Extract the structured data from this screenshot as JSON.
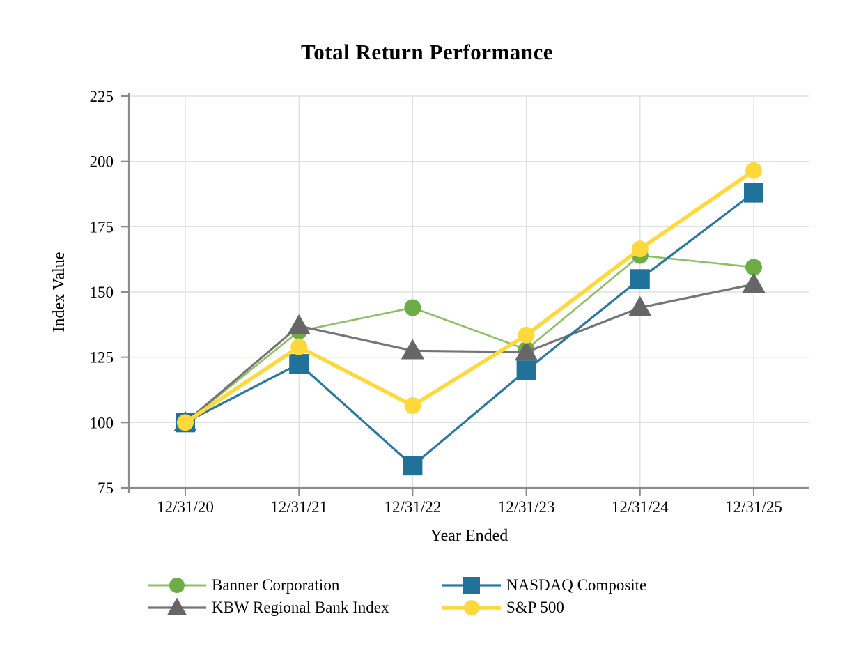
{
  "page": {
    "background": "#FFFFFF"
  },
  "chart_data": {
    "type": "line",
    "title": "Total Return Performance",
    "xlabel": "Year Ended",
    "ylabel": "Index Value",
    "categories": [
      "12/31/20",
      "12/31/21",
      "12/31/22",
      "12/31/23",
      "12/31/24",
      "12/31/25"
    ],
    "ylim": [
      75,
      225
    ],
    "yticks": [
      75,
      100,
      125,
      150,
      175,
      200,
      225
    ],
    "grid": true,
    "legend_position": "bottom",
    "series": [
      {
        "name": "Banner Corporation",
        "marker": "circle",
        "color": "#6CAD46",
        "line_color": "#8CC063",
        "line_width": 2.6,
        "values": [
          100,
          135,
          144,
          128,
          164,
          159.5
        ]
      },
      {
        "name": "NASDAQ Composite",
        "marker": "square",
        "color": "#21729B",
        "line_color": "#2878A1",
        "line_width": 3.2,
        "values": [
          100,
          122.5,
          83.5,
          120,
          155,
          188
        ]
      },
      {
        "name": "KBW Regional Bank Index",
        "marker": "triangle",
        "color": "#666666",
        "line_color": "#757575",
        "line_width": 3.2,
        "values": [
          100,
          137,
          127.5,
          127,
          144,
          153
        ]
      },
      {
        "name": "S&P 500",
        "marker": "circle",
        "color": "#FFD93C",
        "line_color": "#FFD93C",
        "line_width": 5.5,
        "values": [
          100,
          129,
          106.5,
          133.5,
          166.5,
          196.5
        ]
      }
    ],
    "draw_order": [
      0,
      2,
      1,
      3
    ],
    "axis_color": "#8C8C8C",
    "grid_color": "#E0E0E0",
    "text_color": "#000000"
  }
}
